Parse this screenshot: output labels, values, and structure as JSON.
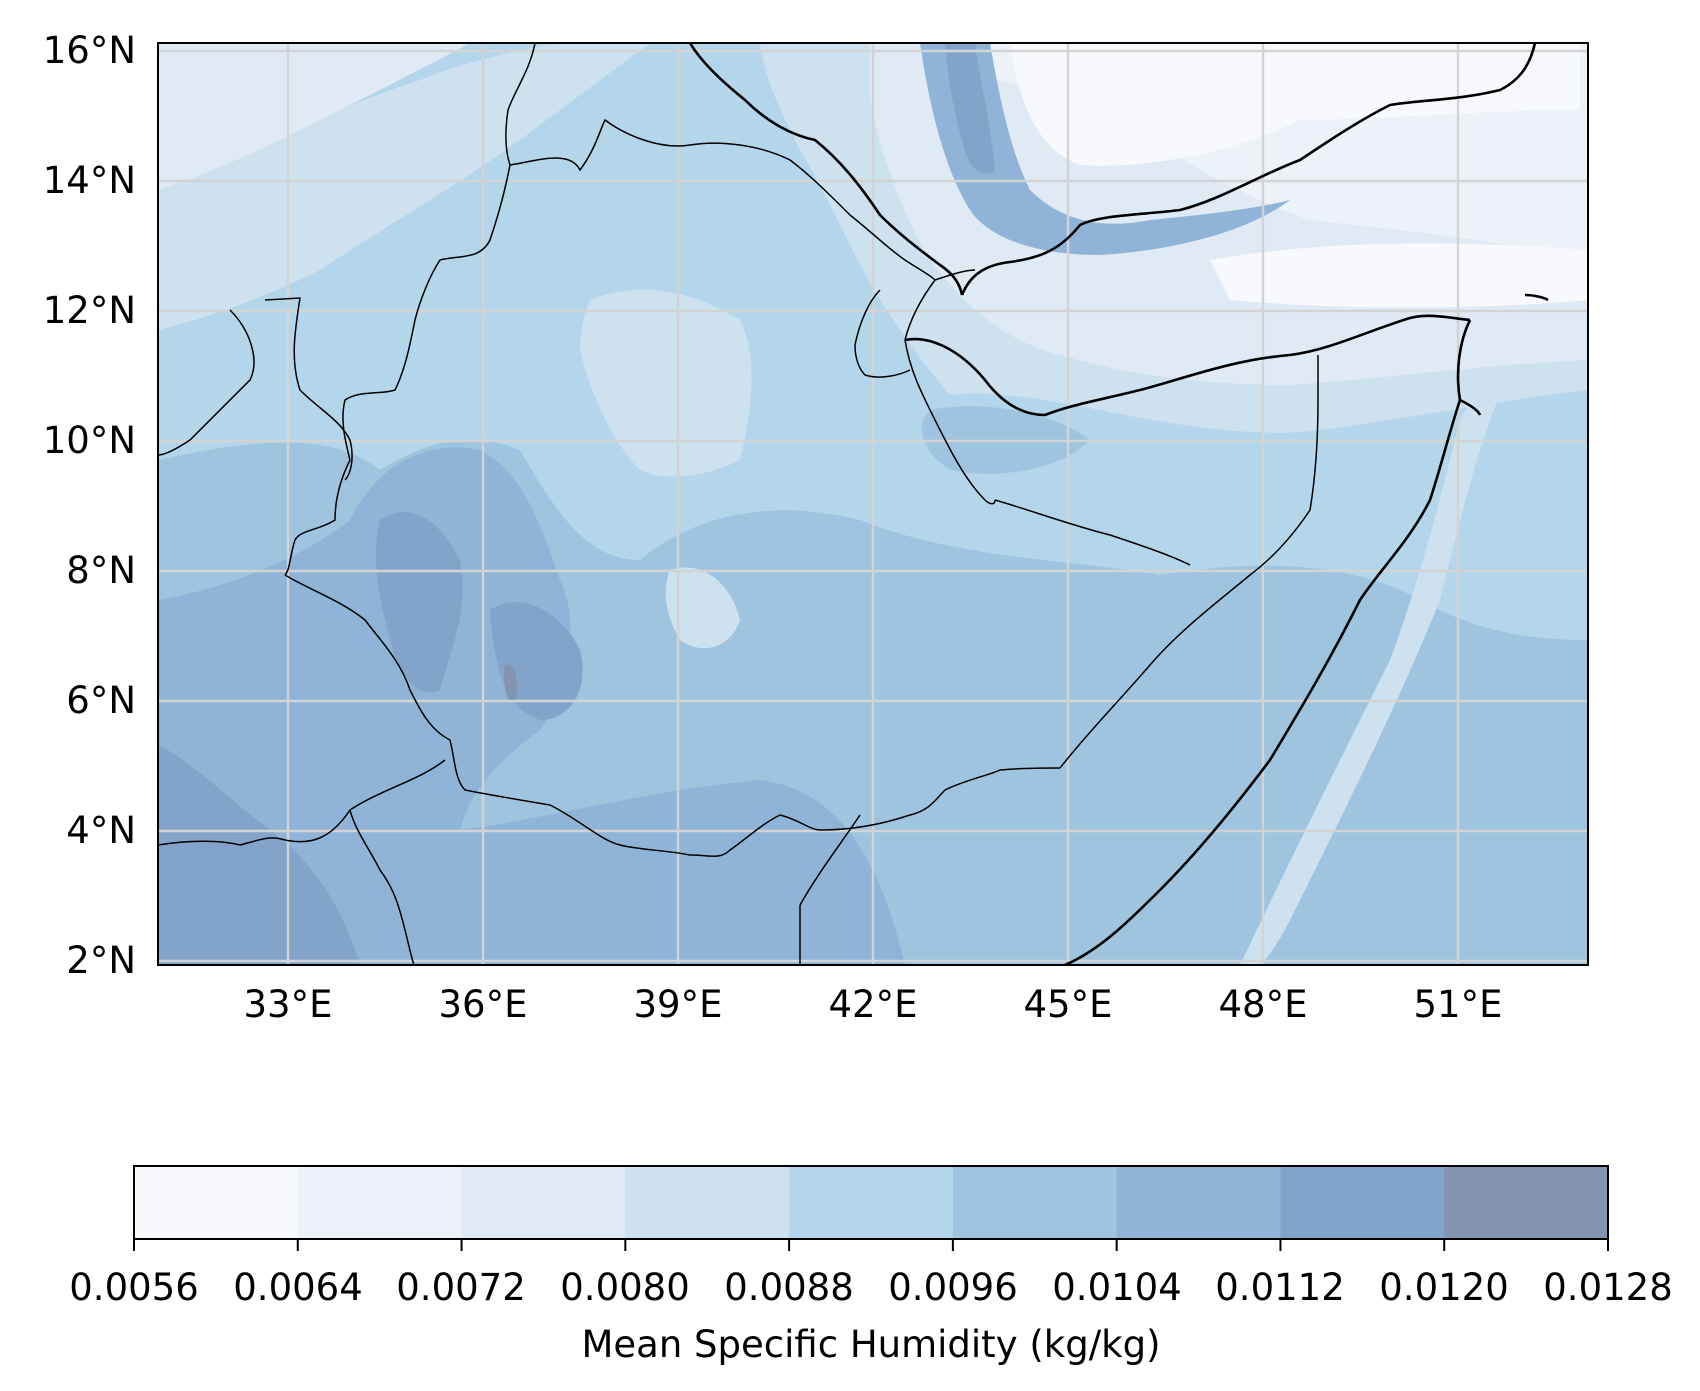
{
  "map": {
    "lon_range": [
      31,
      53
    ],
    "lat_range": [
      1.9,
      16.1
    ],
    "lon_ticks": [
      "33°E",
      "36°E",
      "39°E",
      "42°E",
      "45°E",
      "48°E",
      "51°E"
    ],
    "lat_ticks": [
      "16°N",
      "14°N",
      "12°N",
      "10°N",
      "8°N",
      "6°N",
      "4°N",
      "2°N"
    ],
    "gridlines": true,
    "coastlines": true,
    "borders": true
  },
  "colorbar": {
    "label": "Mean Specific Humidity (kg/kg)",
    "orientation": "horizontal",
    "placement": "bottom",
    "levels": [
      "0.0056",
      "0.0064",
      "0.0072",
      "0.0080",
      "0.0088",
      "0.0096",
      "0.0104",
      "0.0112",
      "0.0120",
      "0.0128"
    ],
    "colors": [
      "#f7f9fc",
      "#edf2f9",
      "#e0eaf4",
      "#cde2ee",
      "#b4d6ea",
      "#9fc4e0",
      "#8fb4d8",
      "#82a4cb",
      "#8394b0"
    ]
  }
}
